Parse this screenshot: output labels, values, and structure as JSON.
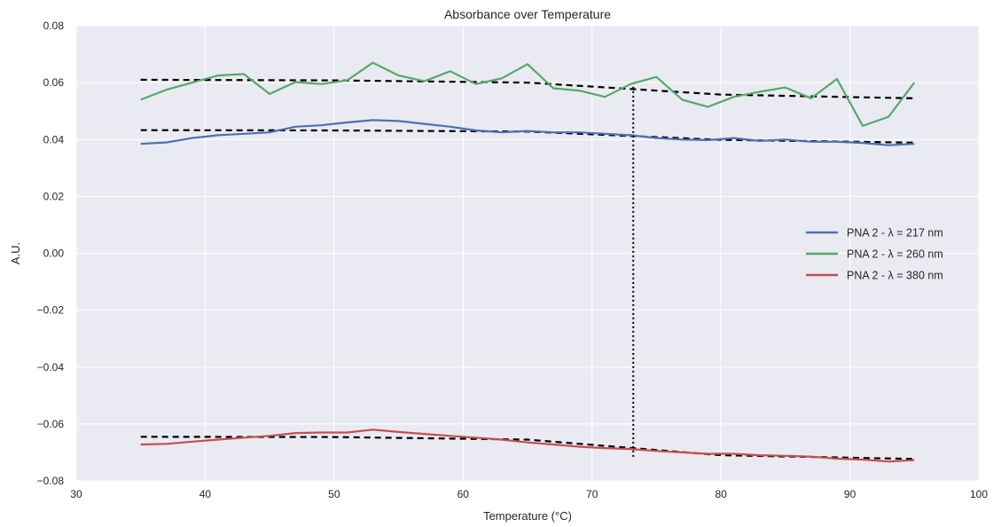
{
  "chart_data": {
    "type": "line",
    "title": "Absorbance  over Temperature",
    "xlabel": "Temperature (°C)",
    "ylabel": "A.U.",
    "xlim": [
      30,
      100
    ],
    "ylim": [
      -0.08,
      0.08
    ],
    "xticks": [
      30,
      40,
      50,
      60,
      70,
      80,
      90,
      100
    ],
    "yticks": [
      -0.08,
      -0.06,
      -0.04,
      -0.02,
      0.0,
      0.02,
      0.04,
      0.06,
      0.08
    ],
    "xtick_labels": [
      "30",
      "40",
      "50",
      "60",
      "70",
      "80",
      "90",
      "100"
    ],
    "ytick_labels": [
      "−0.08",
      "−0.06",
      "−0.04",
      "−0.02",
      "0.00",
      "0.02",
      "0.04",
      "0.06",
      "0.08"
    ],
    "grid": true,
    "legend_position": "right",
    "x": [
      35,
      37,
      39,
      41,
      43,
      45,
      47,
      49,
      51,
      53,
      55,
      57,
      59,
      61,
      63,
      65,
      67,
      69,
      71,
      73,
      75,
      77,
      79,
      81,
      83,
      85,
      87,
      89,
      91,
      93,
      95
    ],
    "series": [
      {
        "name": "PNA 2 - λ = 217 nm",
        "color": "#4c72b0",
        "values": [
          0.0385,
          0.039,
          0.0405,
          0.0415,
          0.042,
          0.0425,
          0.0445,
          0.045,
          0.046,
          0.0468,
          0.0465,
          0.0455,
          0.0445,
          0.0432,
          0.0425,
          0.043,
          0.0425,
          0.0425,
          0.042,
          0.0415,
          0.0405,
          0.04,
          0.0398,
          0.0405,
          0.0395,
          0.04,
          0.0392,
          0.0392,
          0.0388,
          0.038,
          0.0385
        ]
      },
      {
        "name": "PNA 2 - λ = 260 nm",
        "color": "#55a868",
        "values": [
          0.054,
          0.0575,
          0.06,
          0.0625,
          0.063,
          0.056,
          0.0602,
          0.0595,
          0.0608,
          0.067,
          0.0625,
          0.0605,
          0.064,
          0.0595,
          0.0615,
          0.0665,
          0.058,
          0.0572,
          0.055,
          0.0595,
          0.062,
          0.054,
          0.0515,
          0.055,
          0.0568,
          0.0583,
          0.0545,
          0.0613,
          0.0448,
          0.048,
          0.06
        ]
      },
      {
        "name": "PNA 2 - λ = 380 nm",
        "color": "#c44e52",
        "values": [
          -0.0672,
          -0.067,
          -0.0662,
          -0.0655,
          -0.0648,
          -0.0642,
          -0.0632,
          -0.063,
          -0.063,
          -0.062,
          -0.0628,
          -0.0635,
          -0.0642,
          -0.0648,
          -0.0655,
          -0.0665,
          -0.0672,
          -0.068,
          -0.0685,
          -0.0688,
          -0.0695,
          -0.07,
          -0.0705,
          -0.0705,
          -0.071,
          -0.0712,
          -0.0715,
          -0.0722,
          -0.0725,
          -0.0732,
          -0.0727
        ]
      }
    ],
    "fits": [
      {
        "style": "dashed",
        "color": "#000000",
        "x": [
          35,
          50,
          65,
          80,
          95
        ],
        "values": [
          0.061,
          0.0608,
          0.06,
          0.0558,
          0.0545
        ]
      },
      {
        "style": "dashed",
        "color": "#000000",
        "x": [
          35,
          50,
          65,
          80,
          95
        ],
        "values": [
          0.0433,
          0.0432,
          0.0428,
          0.0399,
          0.0389
        ]
      },
      {
        "style": "dashed",
        "color": "#000000",
        "x": [
          35,
          50,
          65,
          80,
          95
        ],
        "values": [
          -0.0645,
          -0.0646,
          -0.0655,
          -0.071,
          -0.0723
        ]
      }
    ],
    "vline": {
      "x": 73.2,
      "y_from": -0.072,
      "y_to": 0.0585,
      "style": "dotted",
      "color": "#000000"
    }
  }
}
